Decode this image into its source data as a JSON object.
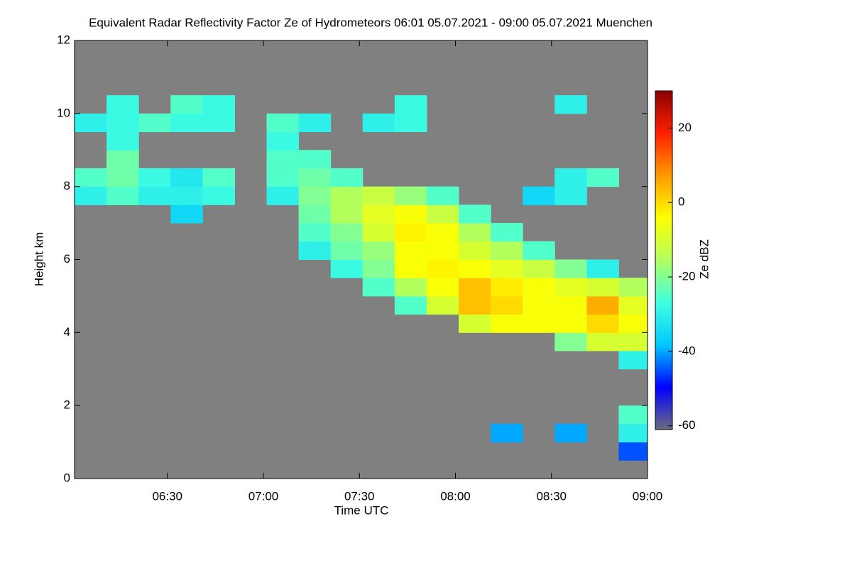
{
  "chart_data": {
    "type": "heatmap",
    "title": "Equivalent Radar Reflectivity Factor Ze of Hydrometeors   06:01 05.07.2021 - 09:00 05.07.2021 Muenchen",
    "x_label": "Time UTC",
    "y_label": "Height km",
    "colorbar_label": "Ze dBZ",
    "background": "#808080",
    "colormap": [
      "#6a6a80",
      "#0000ff",
      "#00c8ff",
      "#40ffe0",
      "#b0ff60",
      "#ffff00",
      "#ff9a00",
      "#ff2000",
      "#8b0000"
    ],
    "xlim": [
      361,
      540
    ],
    "xticks": [
      {
        "value": 390,
        "label": "06:30"
      },
      {
        "value": 420,
        "label": "07:00"
      },
      {
        "value": 450,
        "label": "07:30"
      },
      {
        "value": 480,
        "label": "08:00"
      },
      {
        "value": 510,
        "label": "08:30"
      },
      {
        "value": 540,
        "label": "09:00"
      }
    ],
    "ylim": [
      0,
      12
    ],
    "yticks": [
      0,
      2,
      4,
      6,
      8,
      10,
      12
    ],
    "clim": [
      -61,
      30
    ],
    "cticks": [
      -60,
      -40,
      -20,
      0,
      20
    ],
    "x": [
      366,
      376,
      386,
      396,
      406,
      416,
      426,
      436,
      446,
      456,
      466,
      476,
      486,
      496,
      506,
      516,
      526,
      536
    ],
    "y": [
      0.25,
      0.75,
      1.25,
      1.75,
      2.25,
      2.75,
      3.25,
      3.75,
      4.25,
      4.75,
      5.25,
      5.75,
      6.25,
      6.75,
      7.25,
      7.75,
      8.25,
      8.75,
      9.25,
      9.75,
      10.25,
      10.75,
      11.25,
      11.75
    ],
    "z": [
      [
        null,
        null,
        null,
        null,
        null,
        null,
        null,
        null,
        null,
        null,
        null,
        null,
        null,
        null,
        null,
        null,
        null,
        null
      ],
      [
        null,
        null,
        null,
        null,
        null,
        null,
        null,
        null,
        null,
        null,
        null,
        null,
        null,
        null,
        null,
        null,
        null,
        -45
      ],
      [
        null,
        null,
        null,
        null,
        null,
        null,
        null,
        null,
        null,
        null,
        null,
        null,
        null,
        -40,
        null,
        -40,
        null,
        -30
      ],
      [
        null,
        null,
        null,
        null,
        null,
        null,
        null,
        null,
        null,
        null,
        null,
        null,
        null,
        null,
        null,
        null,
        null,
        -25
      ],
      [
        null,
        null,
        null,
        null,
        null,
        null,
        null,
        null,
        null,
        null,
        null,
        null,
        null,
        null,
        null,
        null,
        null,
        null
      ],
      [
        null,
        null,
        null,
        null,
        null,
        null,
        null,
        null,
        null,
        null,
        null,
        null,
        null,
        null,
        null,
        null,
        null,
        null
      ],
      [
        null,
        null,
        null,
        null,
        null,
        null,
        null,
        null,
        null,
        null,
        null,
        null,
        null,
        null,
        null,
        null,
        null,
        -30
      ],
      [
        null,
        null,
        null,
        null,
        null,
        null,
        null,
        null,
        null,
        null,
        null,
        null,
        null,
        null,
        null,
        -20,
        -10,
        -10
      ],
      [
        null,
        null,
        null,
        null,
        null,
        null,
        null,
        null,
        null,
        null,
        null,
        null,
        -10,
        -5,
        -5,
        -5,
        0,
        -5
      ],
      [
        null,
        null,
        null,
        null,
        null,
        null,
        null,
        null,
        null,
        null,
        -25,
        -10,
        3,
        0,
        -5,
        -5,
        5,
        -8
      ],
      [
        null,
        null,
        null,
        null,
        null,
        null,
        null,
        null,
        null,
        -25,
        -15,
        -5,
        3,
        -2,
        -5,
        -8,
        -10,
        -15
      ],
      [
        null,
        null,
        null,
        null,
        null,
        null,
        null,
        null,
        -28,
        -20,
        -5,
        -3,
        -5,
        -8,
        -12,
        -20,
        -30,
        null
      ],
      [
        null,
        null,
        null,
        null,
        null,
        null,
        null,
        -30,
        -22,
        -18,
        -5,
        -5,
        -10,
        -15,
        -25,
        null,
        null,
        null
      ],
      [
        null,
        null,
        null,
        null,
        null,
        null,
        null,
        -25,
        -20,
        -10,
        -3,
        -5,
        -15,
        -25,
        null,
        null,
        null,
        null
      ],
      [
        null,
        null,
        null,
        -35,
        null,
        null,
        null,
        -22,
        -15,
        -8,
        -5,
        -12,
        -25,
        null,
        null,
        null,
        null,
        null
      ],
      [
        -30,
        -25,
        -30,
        -30,
        -28,
        null,
        -30,
        -20,
        -15,
        -12,
        -18,
        -25,
        null,
        null,
        -35,
        -30,
        null,
        null
      ],
      [
        -25,
        -22,
        -28,
        -32,
        -25,
        null,
        -25,
        -22,
        -25,
        null,
        null,
        null,
        null,
        null,
        null,
        -30,
        -25,
        null
      ],
      [
        null,
        -22,
        null,
        null,
        null,
        null,
        -25,
        -25,
        null,
        null,
        null,
        null,
        null,
        null,
        null,
        null,
        null,
        null
      ],
      [
        null,
        -28,
        null,
        null,
        null,
        null,
        -28,
        null,
        null,
        null,
        null,
        null,
        null,
        null,
        null,
        null,
        null,
        null
      ],
      [
        -30,
        -28,
        -25,
        -28,
        -28,
        null,
        -25,
        -30,
        null,
        -30,
        -28,
        null,
        null,
        null,
        null,
        null,
        null,
        null
      ],
      [
        null,
        -28,
        null,
        -25,
        -28,
        null,
        null,
        null,
        null,
        null,
        -28,
        null,
        null,
        null,
        null,
        -30,
        null,
        null
      ],
      [
        null,
        null,
        null,
        null,
        null,
        null,
        null,
        null,
        null,
        null,
        null,
        null,
        null,
        null,
        null,
        null,
        null,
        null
      ],
      [
        null,
        null,
        null,
        null,
        null,
        null,
        null,
        null,
        null,
        null,
        null,
        null,
        null,
        null,
        null,
        null,
        null,
        null
      ],
      [
        null,
        null,
        null,
        null,
        null,
        null,
        null,
        null,
        null,
        null,
        null,
        null,
        null,
        null,
        null,
        null,
        null,
        null
      ]
    ]
  }
}
